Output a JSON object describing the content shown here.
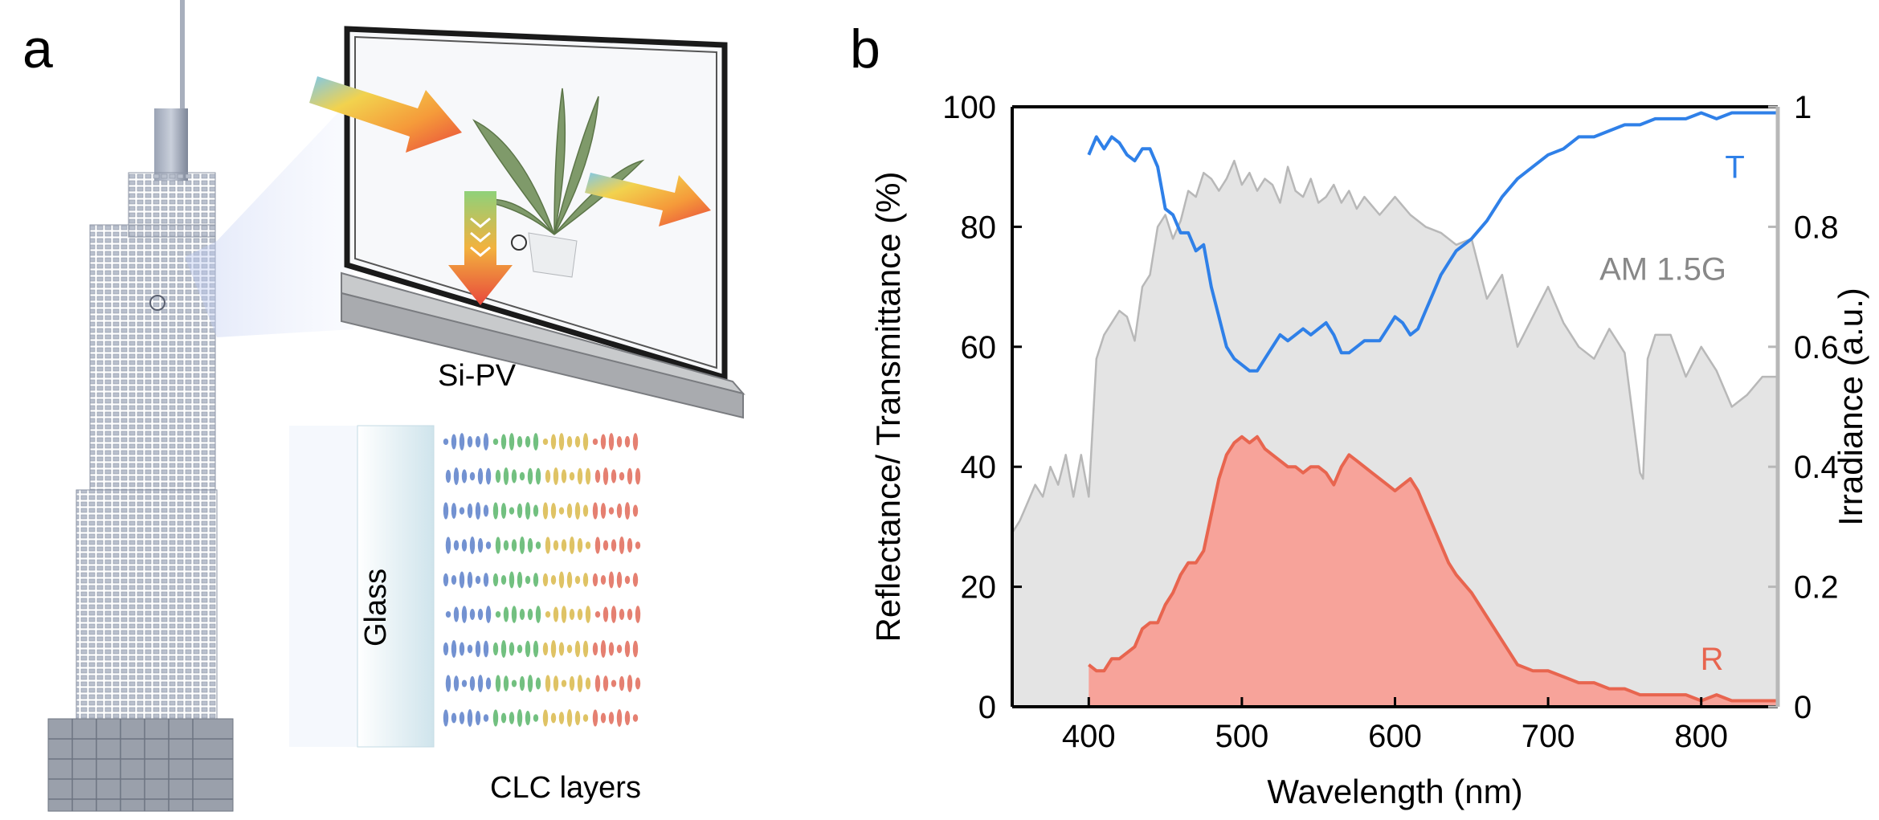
{
  "panel_a": {
    "letter": "a",
    "labels": {
      "si_pv": "Si-PV",
      "glass": "Glass",
      "clc_layers": "CLC layers"
    },
    "icons": [
      "skyscraper-icon",
      "window-frame-icon",
      "plant-icon",
      "rainbow-arrow-icon"
    ]
  },
  "panel_b": {
    "letter": "b"
  },
  "chart_data": {
    "type": "line",
    "title": "",
    "xlabel": "Wavelength (nm)",
    "ylabel": "Reflectance/ Transmittance (%)",
    "y2label": "Irradiance (a.u.)",
    "xlim": [
      350,
      850
    ],
    "ylim": [
      0,
      100
    ],
    "y2lim": [
      0,
      1
    ],
    "xticks": [
      400,
      500,
      600,
      700,
      800
    ],
    "yticks": [
      0,
      20,
      40,
      60,
      80,
      100
    ],
    "y2ticks": [
      0,
      0.2,
      0.4,
      0.6,
      0.8,
      1
    ],
    "ytick_labels": [
      "0",
      "20",
      "40",
      "60",
      "80",
      "100"
    ],
    "y2tick_labels": [
      "0",
      "0.2",
      "0.4",
      "0.6",
      "0.8",
      "1"
    ],
    "grid": false,
    "series": [
      {
        "name": "T",
        "color": "#2f80e8",
        "style": "line",
        "x": [
          400,
          405,
          410,
          415,
          420,
          425,
          430,
          435,
          440,
          445,
          450,
          455,
          460,
          465,
          470,
          475,
          480,
          485,
          490,
          495,
          500,
          505,
          510,
          515,
          520,
          525,
          530,
          535,
          540,
          545,
          550,
          555,
          560,
          565,
          570,
          575,
          580,
          585,
          590,
          595,
          600,
          605,
          610,
          615,
          620,
          625,
          630,
          635,
          640,
          645,
          650,
          660,
          670,
          680,
          690,
          700,
          710,
          720,
          730,
          740,
          750,
          760,
          770,
          780,
          790,
          800,
          810,
          820,
          830,
          840,
          850
        ],
        "values": [
          92,
          95,
          93,
          95,
          94,
          92,
          91,
          93,
          93,
          90,
          83,
          82,
          79,
          79,
          76,
          77,
          70,
          65,
          60,
          58,
          57,
          56,
          56,
          58,
          60,
          62,
          61,
          62,
          63,
          62,
          63,
          64,
          62,
          59,
          59,
          60,
          61,
          61,
          61,
          63,
          65,
          64,
          62,
          63,
          66,
          69,
          72,
          74,
          76,
          77,
          78,
          81,
          85,
          88,
          90,
          92,
          93,
          95,
          95,
          96,
          97,
          97,
          98,
          98,
          98,
          99,
          98,
          99,
          99,
          99,
          99
        ]
      },
      {
        "name": "R",
        "color": "#e8654f",
        "fill": "#f7a39a",
        "style": "area",
        "x": [
          400,
          405,
          410,
          415,
          420,
          425,
          430,
          435,
          440,
          445,
          450,
          455,
          460,
          465,
          470,
          475,
          480,
          485,
          490,
          495,
          500,
          505,
          510,
          515,
          520,
          525,
          530,
          535,
          540,
          545,
          550,
          555,
          560,
          565,
          570,
          575,
          580,
          585,
          590,
          595,
          600,
          605,
          610,
          615,
          620,
          625,
          630,
          635,
          640,
          650,
          660,
          670,
          680,
          690,
          700,
          710,
          720,
          730,
          740,
          750,
          760,
          770,
          780,
          790,
          800,
          810,
          820,
          830,
          840,
          850
        ],
        "values": [
          7,
          6,
          6,
          8,
          8,
          9,
          10,
          13,
          14,
          14,
          17,
          19,
          22,
          24,
          24,
          26,
          32,
          38,
          42,
          44,
          45,
          44,
          45,
          43,
          42,
          41,
          40,
          40,
          39,
          40,
          40,
          39,
          37,
          40,
          42,
          41,
          40,
          39,
          38,
          37,
          36,
          37,
          38,
          36,
          33,
          30,
          27,
          24,
          22,
          19,
          15,
          11,
          7,
          6,
          6,
          5,
          4,
          4,
          3,
          3,
          2,
          2,
          2,
          2,
          1,
          2,
          1,
          1,
          1,
          1
        ]
      },
      {
        "name": "AM 1.5G",
        "color": "#b8b8b8",
        "fill": "#e4e4e4",
        "style": "area",
        "axis": "right",
        "x": [
          350,
          355,
          360,
          365,
          370,
          375,
          380,
          385,
          390,
          395,
          400,
          405,
          410,
          415,
          420,
          425,
          430,
          435,
          440,
          445,
          450,
          455,
          460,
          465,
          470,
          475,
          480,
          485,
          490,
          495,
          500,
          505,
          510,
          515,
          520,
          525,
          530,
          535,
          540,
          545,
          550,
          555,
          560,
          565,
          570,
          575,
          580,
          590,
          600,
          610,
          620,
          630,
          640,
          650,
          660,
          670,
          680,
          690,
          700,
          710,
          720,
          730,
          740,
          750,
          760,
          762,
          765,
          770,
          780,
          790,
          800,
          810,
          820,
          830,
          840,
          850
        ],
        "values": [
          0.29,
          0.31,
          0.34,
          0.37,
          0.35,
          0.4,
          0.37,
          0.42,
          0.35,
          0.42,
          0.35,
          0.58,
          0.62,
          0.64,
          0.66,
          0.65,
          0.61,
          0.7,
          0.72,
          0.8,
          0.82,
          0.78,
          0.81,
          0.86,
          0.85,
          0.89,
          0.88,
          0.86,
          0.88,
          0.91,
          0.87,
          0.89,
          0.86,
          0.88,
          0.87,
          0.84,
          0.9,
          0.86,
          0.85,
          0.88,
          0.84,
          0.85,
          0.87,
          0.84,
          0.86,
          0.83,
          0.85,
          0.82,
          0.85,
          0.82,
          0.8,
          0.79,
          0.77,
          0.78,
          0.68,
          0.72,
          0.6,
          0.65,
          0.7,
          0.64,
          0.6,
          0.58,
          0.63,
          0.59,
          0.39,
          0.38,
          0.58,
          0.62,
          0.62,
          0.55,
          0.6,
          0.56,
          0.5,
          0.52,
          0.55,
          0.55
        ]
      }
    ],
    "annotations": [
      {
        "text": "T",
        "color": "#2f80e8",
        "x": 822,
        "y": 90
      },
      {
        "text": "AM 1.5G",
        "color": "#888888",
        "x": 775,
        "y": 73
      },
      {
        "text": "R",
        "color": "#e8654f",
        "x": 807,
        "y": 8
      }
    ]
  }
}
